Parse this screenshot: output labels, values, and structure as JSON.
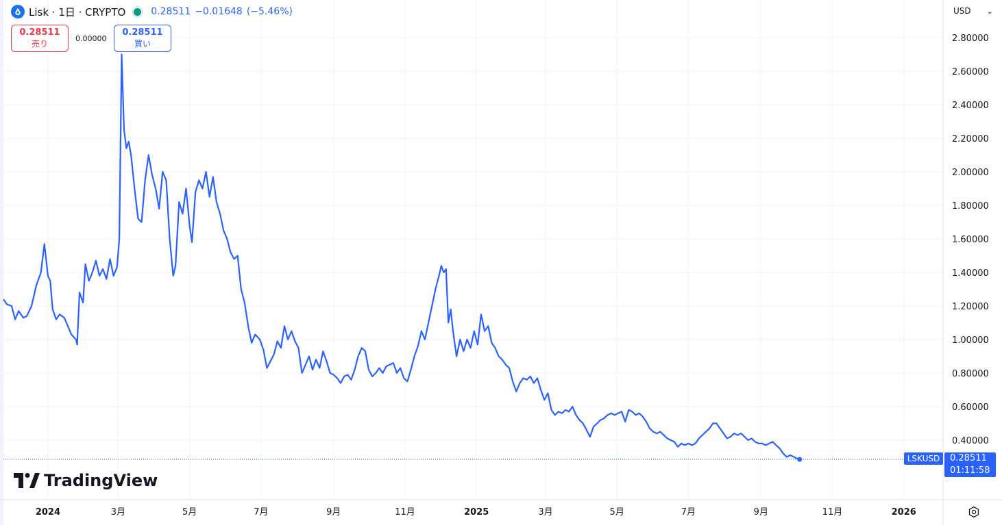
{
  "legend": {
    "symbol_text": "Lisk · 1日 · CRYPTO",
    "last": "0.28511",
    "change": "−0.01648",
    "change_pct": "(−5.46%)"
  },
  "trade": {
    "sell_price": "0.28511",
    "sell_label": "売り",
    "spread": "0.00000",
    "buy_price": "0.28511",
    "buy_label": "買い"
  },
  "currency": "USD",
  "price_tag": {
    "symbol": "LSKUSD",
    "price": "0.28511",
    "countdown": "01:11:58"
  },
  "brand": "TradingView",
  "colors": {
    "line": "#2962ff",
    "grid": "#f0f3fa",
    "sell": "#f23645",
    "buy": "#2962ff",
    "live_dot": "#089981"
  },
  "icons": [
    "lisk-logo-icon",
    "market-status-dot-icon",
    "chevron-down-icon",
    "tradingview-logo-icon",
    "settings-gear-icon"
  ],
  "chart_data": {
    "type": "line",
    "title": "",
    "xlabel": "",
    "ylabel": "",
    "ylim": [
      0.0,
      2.9
    ],
    "xlim": [
      "2023-11-24",
      "2026-01-31"
    ],
    "y_ticks": [
      "2.80000",
      "2.60000",
      "2.40000",
      "2.20000",
      "2.00000",
      "1.80000",
      "1.60000",
      "1.40000",
      "1.20000",
      "1.00000",
      "0.80000",
      "0.60000",
      "0.40000"
    ],
    "x_ticks": [
      {
        "label": "2024",
        "date": "2024-01-01",
        "bold": true
      },
      {
        "label": "3月",
        "date": "2024-03-01",
        "bold": false
      },
      {
        "label": "5月",
        "date": "2024-05-01",
        "bold": false
      },
      {
        "label": "7月",
        "date": "2024-07-01",
        "bold": false
      },
      {
        "label": "9月",
        "date": "2024-09-01",
        "bold": false
      },
      {
        "label": "11月",
        "date": "2024-11-01",
        "bold": false
      },
      {
        "label": "2025",
        "date": "2025-01-01",
        "bold": true
      },
      {
        "label": "3月",
        "date": "2025-03-01",
        "bold": false
      },
      {
        "label": "5月",
        "date": "2025-05-01",
        "bold": false
      },
      {
        "label": "7月",
        "date": "2025-07-01",
        "bold": false
      },
      {
        "label": "9月",
        "date": "2025-09-01",
        "bold": false
      },
      {
        "label": "11月",
        "date": "2025-11-01",
        "bold": false
      },
      {
        "label": "2026",
        "date": "2026-01-01",
        "bold": true
      }
    ],
    "grid": true,
    "last_price_line": 0.28511,
    "series": [
      {
        "values": [
          [
            "2023-11-24",
            1.24
          ],
          [
            "2023-11-27",
            1.21
          ],
          [
            "2023-12-01",
            1.2
          ],
          [
            "2023-12-04",
            1.12
          ],
          [
            "2023-12-07",
            1.17
          ],
          [
            "2023-12-11",
            1.13
          ],
          [
            "2023-12-14",
            1.14
          ],
          [
            "2023-12-18",
            1.2
          ],
          [
            "2023-12-22",
            1.32
          ],
          [
            "2023-12-26",
            1.4
          ],
          [
            "2023-12-29",
            1.57
          ],
          [
            "2024-01-01",
            1.38
          ],
          [
            "2024-01-03",
            1.35
          ],
          [
            "2024-01-05",
            1.18
          ],
          [
            "2024-01-08",
            1.12
          ],
          [
            "2024-01-11",
            1.15
          ],
          [
            "2024-01-15",
            1.13
          ],
          [
            "2024-01-18",
            1.08
          ],
          [
            "2024-01-21",
            1.03
          ],
          [
            "2024-01-25",
            1.0
          ],
          [
            "2024-01-26",
            0.97
          ],
          [
            "2024-01-28",
            1.28
          ],
          [
            "2024-01-31",
            1.22
          ],
          [
            "2024-02-02",
            1.45
          ],
          [
            "2024-02-05",
            1.35
          ],
          [
            "2024-02-08",
            1.4
          ],
          [
            "2024-02-11",
            1.47
          ],
          [
            "2024-02-14",
            1.38
          ],
          [
            "2024-02-17",
            1.42
          ],
          [
            "2024-02-20",
            1.36
          ],
          [
            "2024-02-23",
            1.48
          ],
          [
            "2024-02-26",
            1.38
          ],
          [
            "2024-02-29",
            1.43
          ],
          [
            "2024-03-02",
            1.6
          ],
          [
            "2024-03-04",
            2.7
          ],
          [
            "2024-03-06",
            2.25
          ],
          [
            "2024-03-08",
            2.14
          ],
          [
            "2024-03-10",
            2.18
          ],
          [
            "2024-03-12",
            2.1
          ],
          [
            "2024-03-15",
            1.9
          ],
          [
            "2024-03-18",
            1.72
          ],
          [
            "2024-03-21",
            1.7
          ],
          [
            "2024-03-24",
            1.95
          ],
          [
            "2024-03-27",
            2.1
          ],
          [
            "2024-03-30",
            1.98
          ],
          [
            "2024-04-02",
            1.9
          ],
          [
            "2024-04-05",
            1.78
          ],
          [
            "2024-04-08",
            2.0
          ],
          [
            "2024-04-11",
            1.95
          ],
          [
            "2024-04-14",
            1.6
          ],
          [
            "2024-04-17",
            1.38
          ],
          [
            "2024-04-19",
            1.44
          ],
          [
            "2024-04-22",
            1.82
          ],
          [
            "2024-04-25",
            1.75
          ],
          [
            "2024-04-28",
            1.9
          ],
          [
            "2024-05-01",
            1.68
          ],
          [
            "2024-05-03",
            1.58
          ],
          [
            "2024-05-06",
            1.88
          ],
          [
            "2024-05-09",
            1.95
          ],
          [
            "2024-05-12",
            1.9
          ],
          [
            "2024-05-15",
            2.0
          ],
          [
            "2024-05-18",
            1.85
          ],
          [
            "2024-05-21",
            1.97
          ],
          [
            "2024-05-24",
            1.82
          ],
          [
            "2024-05-27",
            1.75
          ],
          [
            "2024-05-30",
            1.65
          ],
          [
            "2024-06-02",
            1.6
          ],
          [
            "2024-06-05",
            1.52
          ],
          [
            "2024-06-08",
            1.48
          ],
          [
            "2024-06-11",
            1.5
          ],
          [
            "2024-06-14",
            1.3
          ],
          [
            "2024-06-17",
            1.22
          ],
          [
            "2024-06-20",
            1.08
          ],
          [
            "2024-06-23",
            0.98
          ],
          [
            "2024-06-26",
            1.03
          ],
          [
            "2024-06-30",
            1.0
          ],
          [
            "2024-07-03",
            0.94
          ],
          [
            "2024-07-06",
            0.83
          ],
          [
            "2024-07-09",
            0.87
          ],
          [
            "2024-07-12",
            0.91
          ],
          [
            "2024-07-15",
            0.99
          ],
          [
            "2024-07-18",
            0.95
          ],
          [
            "2024-07-21",
            1.08
          ],
          [
            "2024-07-24",
            1.0
          ],
          [
            "2024-07-27",
            1.05
          ],
          [
            "2024-07-30",
            0.99
          ],
          [
            "2024-08-02",
            0.95
          ],
          [
            "2024-08-05",
            0.8
          ],
          [
            "2024-08-08",
            0.85
          ],
          [
            "2024-08-11",
            0.9
          ],
          [
            "2024-08-14",
            0.82
          ],
          [
            "2024-08-17",
            0.88
          ],
          [
            "2024-08-20",
            0.83
          ],
          [
            "2024-08-23",
            0.93
          ],
          [
            "2024-08-26",
            0.87
          ],
          [
            "2024-08-29",
            0.8
          ],
          [
            "2024-09-01",
            0.79
          ],
          [
            "2024-09-04",
            0.77
          ],
          [
            "2024-09-07",
            0.74
          ],
          [
            "2024-09-10",
            0.78
          ],
          [
            "2024-09-13",
            0.79
          ],
          [
            "2024-09-16",
            0.76
          ],
          [
            "2024-09-19",
            0.82
          ],
          [
            "2024-09-22",
            0.9
          ],
          [
            "2024-09-25",
            0.95
          ],
          [
            "2024-09-28",
            0.93
          ],
          [
            "2024-10-01",
            0.82
          ],
          [
            "2024-10-04",
            0.78
          ],
          [
            "2024-10-07",
            0.8
          ],
          [
            "2024-10-10",
            0.83
          ],
          [
            "2024-10-13",
            0.8
          ],
          [
            "2024-10-16",
            0.84
          ],
          [
            "2024-10-19",
            0.85
          ],
          [
            "2024-10-22",
            0.86
          ],
          [
            "2024-10-25",
            0.8
          ],
          [
            "2024-10-28",
            0.83
          ],
          [
            "2024-10-31",
            0.77
          ],
          [
            "2024-11-03",
            0.75
          ],
          [
            "2024-11-06",
            0.82
          ],
          [
            "2024-11-09",
            0.9
          ],
          [
            "2024-11-12",
            0.96
          ],
          [
            "2024-11-15",
            1.05
          ],
          [
            "2024-11-18",
            1.0
          ],
          [
            "2024-11-21",
            1.1
          ],
          [
            "2024-11-24",
            1.2
          ],
          [
            "2024-11-27",
            1.3
          ],
          [
            "2024-11-30",
            1.38
          ],
          [
            "2024-12-02",
            1.44
          ],
          [
            "2024-12-04",
            1.4
          ],
          [
            "2024-12-06",
            1.42
          ],
          [
            "2024-12-08",
            1.1
          ],
          [
            "2024-12-10",
            1.18
          ],
          [
            "2024-12-12",
            1.05
          ],
          [
            "2024-12-15",
            0.9
          ],
          [
            "2024-12-18",
            1.0
          ],
          [
            "2024-12-21",
            0.93
          ],
          [
            "2024-12-24",
            1.0
          ],
          [
            "2024-12-27",
            0.95
          ],
          [
            "2024-12-30",
            1.05
          ],
          [
            "2025-01-02",
            0.97
          ],
          [
            "2025-01-05",
            1.15
          ],
          [
            "2025-01-08",
            1.05
          ],
          [
            "2025-01-11",
            1.08
          ],
          [
            "2025-01-14",
            0.98
          ],
          [
            "2025-01-17",
            0.95
          ],
          [
            "2025-01-20",
            0.9
          ],
          [
            "2025-01-23",
            0.88
          ],
          [
            "2025-01-26",
            0.85
          ],
          [
            "2025-01-29",
            0.83
          ],
          [
            "2025-02-01",
            0.75
          ],
          [
            "2025-02-04",
            0.69
          ],
          [
            "2025-02-07",
            0.74
          ],
          [
            "2025-02-10",
            0.77
          ],
          [
            "2025-02-13",
            0.76
          ],
          [
            "2025-02-16",
            0.78
          ],
          [
            "2025-02-19",
            0.74
          ],
          [
            "2025-02-22",
            0.77
          ],
          [
            "2025-02-25",
            0.7
          ],
          [
            "2025-02-28",
            0.64
          ],
          [
            "2025-03-03",
            0.68
          ],
          [
            "2025-03-06",
            0.58
          ],
          [
            "2025-03-09",
            0.55
          ],
          [
            "2025-03-12",
            0.57
          ],
          [
            "2025-03-15",
            0.56
          ],
          [
            "2025-03-18",
            0.58
          ],
          [
            "2025-03-21",
            0.57
          ],
          [
            "2025-03-24",
            0.6
          ],
          [
            "2025-03-27",
            0.55
          ],
          [
            "2025-03-30",
            0.52
          ],
          [
            "2025-04-02",
            0.5
          ],
          [
            "2025-04-05",
            0.46
          ],
          [
            "2025-04-08",
            0.42
          ],
          [
            "2025-04-11",
            0.48
          ],
          [
            "2025-04-14",
            0.5
          ],
          [
            "2025-04-17",
            0.52
          ],
          [
            "2025-04-20",
            0.53
          ],
          [
            "2025-04-23",
            0.55
          ],
          [
            "2025-04-26",
            0.56
          ],
          [
            "2025-04-29",
            0.55
          ],
          [
            "2025-05-02",
            0.56
          ],
          [
            "2025-05-05",
            0.57
          ],
          [
            "2025-05-08",
            0.51
          ],
          [
            "2025-05-11",
            0.58
          ],
          [
            "2025-05-14",
            0.57
          ],
          [
            "2025-05-17",
            0.55
          ],
          [
            "2025-05-20",
            0.56
          ],
          [
            "2025-05-23",
            0.54
          ],
          [
            "2025-05-26",
            0.51
          ],
          [
            "2025-05-29",
            0.47
          ],
          [
            "2025-06-01",
            0.45
          ],
          [
            "2025-06-04",
            0.44
          ],
          [
            "2025-06-07",
            0.45
          ],
          [
            "2025-06-10",
            0.43
          ],
          [
            "2025-06-13",
            0.41
          ],
          [
            "2025-06-16",
            0.4
          ],
          [
            "2025-06-19",
            0.39
          ],
          [
            "2025-06-22",
            0.36
          ],
          [
            "2025-06-25",
            0.38
          ],
          [
            "2025-06-28",
            0.37
          ],
          [
            "2025-07-01",
            0.38
          ],
          [
            "2025-07-04",
            0.37
          ],
          [
            "2025-07-07",
            0.38
          ],
          [
            "2025-07-10",
            0.41
          ],
          [
            "2025-07-13",
            0.43
          ],
          [
            "2025-07-16",
            0.45
          ],
          [
            "2025-07-19",
            0.47
          ],
          [
            "2025-07-22",
            0.5
          ],
          [
            "2025-07-25",
            0.5
          ],
          [
            "2025-07-28",
            0.47
          ],
          [
            "2025-07-31",
            0.44
          ],
          [
            "2025-08-03",
            0.41
          ],
          [
            "2025-08-06",
            0.42
          ],
          [
            "2025-08-09",
            0.44
          ],
          [
            "2025-08-12",
            0.43
          ],
          [
            "2025-08-15",
            0.44
          ],
          [
            "2025-08-18",
            0.42
          ],
          [
            "2025-08-21",
            0.4
          ],
          [
            "2025-08-24",
            0.41
          ],
          [
            "2025-08-27",
            0.39
          ],
          [
            "2025-08-30",
            0.38
          ],
          [
            "2025-09-02",
            0.38
          ],
          [
            "2025-09-05",
            0.37
          ],
          [
            "2025-09-08",
            0.38
          ],
          [
            "2025-09-11",
            0.39
          ],
          [
            "2025-09-14",
            0.37
          ],
          [
            "2025-09-17",
            0.35
          ],
          [
            "2025-09-20",
            0.32
          ],
          [
            "2025-09-23",
            0.3
          ],
          [
            "2025-09-26",
            0.31
          ],
          [
            "2025-09-29",
            0.3
          ],
          [
            "2025-10-02",
            0.29
          ],
          [
            "2025-10-04",
            0.28511
          ]
        ]
      }
    ]
  }
}
